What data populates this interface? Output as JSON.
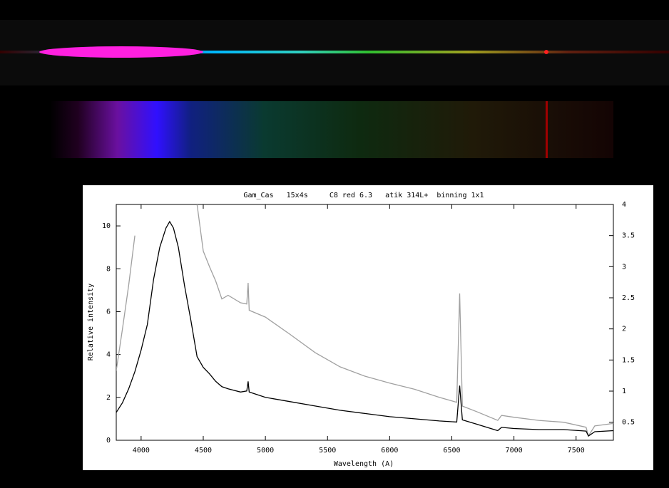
{
  "chart_data": {
    "type": "line",
    "title": "Gam_Cas   15x4s     C8 red 6.3   atik 314L+  binning 1x1",
    "xlabel": "Wavelength (A)",
    "ylabel": "Relative intensity",
    "x": [
      3800,
      3850,
      3900,
      3950,
      4000,
      4050,
      4100,
      4150,
      4200,
      4230,
      4260,
      4300,
      4350,
      4400,
      4450,
      4500,
      4550,
      4600,
      4650,
      4700,
      4800,
      4850,
      4861,
      4870,
      5000,
      5200,
      5400,
      5600,
      5800,
      6000,
      6200,
      6400,
      6540,
      6563,
      6585,
      6700,
      6870,
      6900,
      7000,
      7200,
      7400,
      7580,
      7600,
      7650,
      7800
    ],
    "series": [
      {
        "color": "#000000",
        "values": [
          1.3,
          1.75,
          2.4,
          3.2,
          4.2,
          5.4,
          7.5,
          9.0,
          9.9,
          10.2,
          9.9,
          9.0,
          7.2,
          5.6,
          3.9,
          3.4,
          3.1,
          2.75,
          2.5,
          2.4,
          2.25,
          2.3,
          2.75,
          2.25,
          2.0,
          1.8,
          1.6,
          1.4,
          1.25,
          1.1,
          1.0,
          0.9,
          0.85,
          2.55,
          0.95,
          0.75,
          0.45,
          0.6,
          0.55,
          0.5,
          0.5,
          0.43,
          0.2,
          0.4,
          0.45
        ]
      },
      {
        "color": "#a0a0a0",
        "axis": "y2",
        "values": [
          1.33,
          2.0,
          2.7,
          3.5,
          null,
          null,
          null,
          null,
          null,
          null,
          null,
          null,
          null,
          null,
          4.0,
          3.25,
          3.0,
          2.77,
          2.48,
          2.54,
          2.42,
          2.4,
          2.74,
          2.3,
          2.19,
          1.91,
          1.62,
          1.39,
          1.24,
          1.13,
          1.03,
          0.9,
          0.82,
          2.57,
          0.76,
          0.67,
          0.53,
          0.61,
          0.58,
          0.53,
          0.5,
          0.42,
          0.28,
          0.44,
          0.48
        ]
      }
    ],
    "xlim": [
      3800,
      7800
    ],
    "xticks": [
      4000,
      4500,
      5000,
      5500,
      6000,
      6500,
      7000,
      7500
    ],
    "ylim": [
      0,
      11
    ],
    "yticks": [
      0,
      2,
      4,
      6,
      8,
      10
    ],
    "y2lim": [
      0.21,
      4
    ],
    "y2ticks": [
      0.5,
      1,
      1.5,
      2,
      2.5,
      3,
      3.5,
      4
    ]
  }
}
